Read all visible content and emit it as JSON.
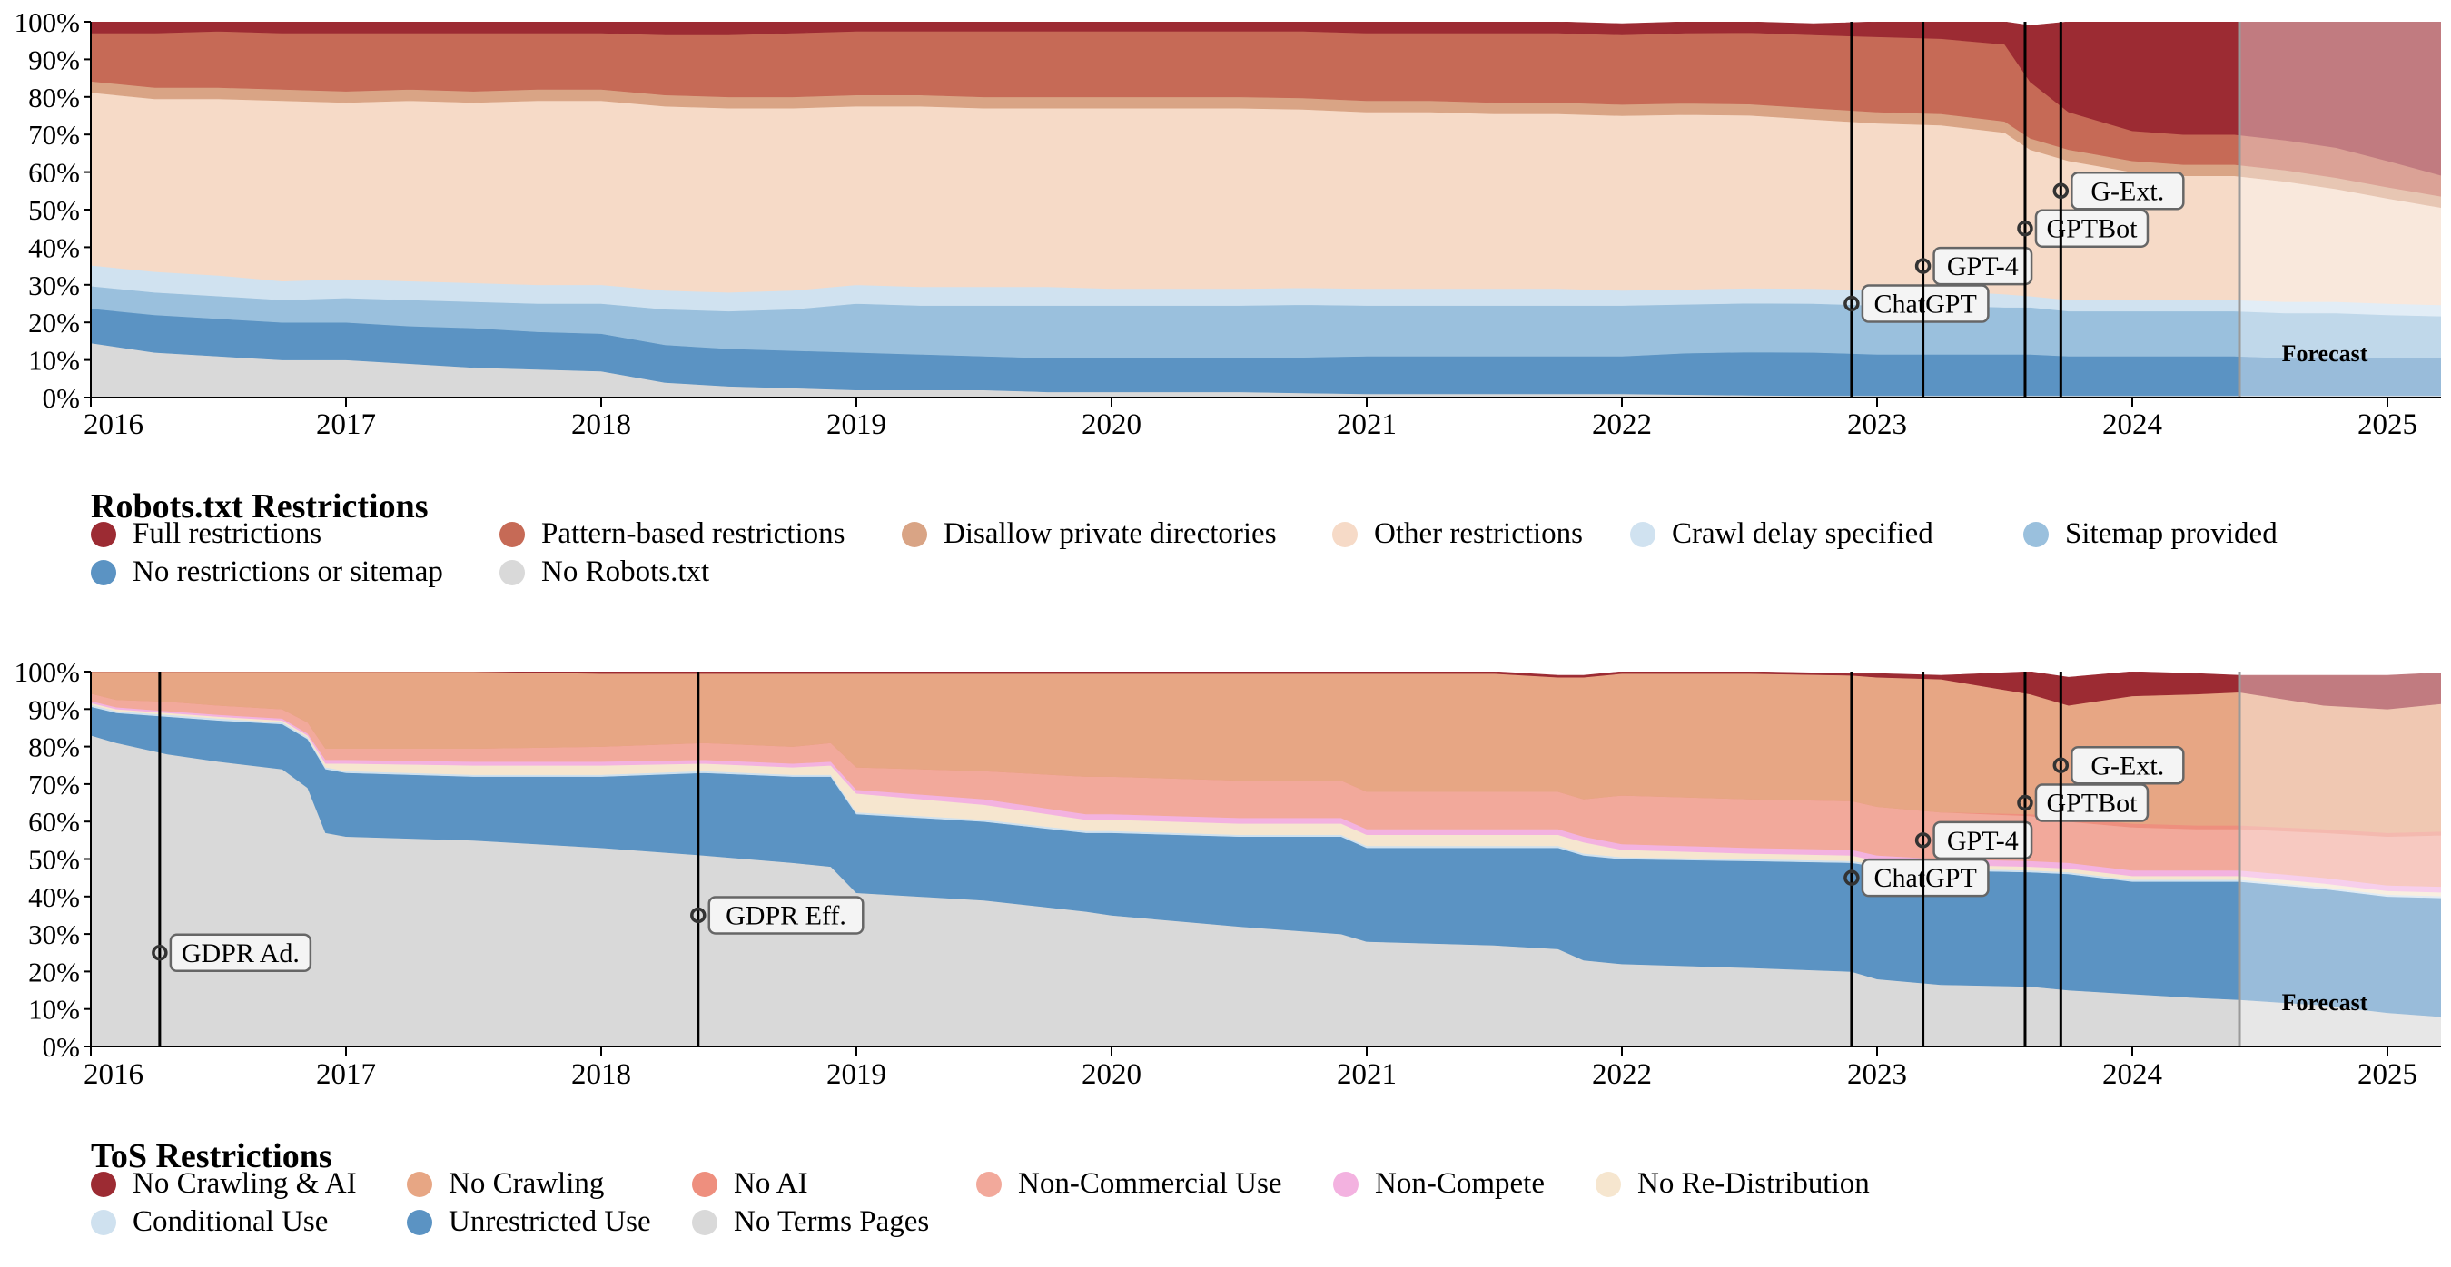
{
  "chart_data": [
    {
      "type": "area",
      "stacked": true,
      "title": "Robots.txt Restrictions",
      "x": [
        2015.95,
        2016.25,
        2016.5,
        2016.75,
        2017.0,
        2017.25,
        2017.5,
        2017.75,
        2018.0,
        2018.25,
        2018.5,
        2018.75,
        2019.0,
        2019.25,
        2019.5,
        2019.75,
        2020.0,
        2020.25,
        2020.5,
        2020.75,
        2021.0,
        2021.25,
        2021.5,
        2021.75,
        2022.0,
        2022.25,
        2022.5,
        2022.75,
        2023.0,
        2023.25,
        2023.5,
        2023.6,
        2023.75,
        2024.0,
        2024.2,
        2024.4,
        2024.6,
        2024.8,
        2025.0,
        2025.3
      ],
      "forecast_start": 2024.42,
      "forecast_label": "Forecast",
      "ylim": [
        0,
        100
      ],
      "yticks": [
        "0%",
        "10%",
        "20%",
        "30%",
        "40%",
        "50%",
        "60%",
        "70%",
        "80%",
        "90%",
        "100%"
      ],
      "xticks": [
        {
          "v": 2016,
          "label": "2016"
        },
        {
          "v": 2017,
          "label": "2017"
        },
        {
          "v": 2018,
          "label": "2018"
        },
        {
          "v": 2019,
          "label": "2019"
        },
        {
          "v": 2020,
          "label": "2020"
        },
        {
          "v": 2021,
          "label": "2021"
        },
        {
          "v": 2022,
          "label": "2022"
        },
        {
          "v": 2023,
          "label": "2023"
        },
        {
          "v": 2024,
          "label": "2024"
        },
        {
          "v": 2025,
          "label": "2025"
        }
      ],
      "series": [
        {
          "name": "No Robots.txt",
          "color": "#d9d9d9",
          "values": [
            15,
            12,
            11,
            10,
            10,
            9,
            8,
            7.5,
            7,
            4,
            3,
            2.5,
            2,
            2,
            2,
            1.5,
            1.5,
            1.5,
            1.5,
            1.2,
            1,
            1,
            1,
            1,
            1,
            0.8,
            0.6,
            0.5,
            0.5,
            0.5,
            0.5,
            0.5,
            0.5,
            0.5,
            0.5,
            0.5,
            0.5,
            0.5,
            0.5,
            0.5
          ]
        },
        {
          "name": "No restrictions or sitemap",
          "color": "#5b93c3",
          "values": [
            9,
            10,
            10,
            10,
            10,
            10,
            10.5,
            10,
            10,
            10,
            10,
            10,
            10,
            9.5,
            9,
            9,
            9,
            9,
            9,
            9.5,
            10,
            10,
            10,
            10,
            10,
            11,
            11.5,
            11.5,
            11,
            11,
            11,
            11,
            10.5,
            10.5,
            10.5,
            10.5,
            10,
            10,
            10,
            10
          ]
        },
        {
          "name": "Sitemap provided",
          "color": "#9ac0dd",
          "values": [
            6,
            6,
            6,
            6,
            6.5,
            7,
            7,
            7.5,
            8,
            9.5,
            10,
            11,
            13,
            13,
            13.5,
            14,
            14,
            14,
            14,
            14,
            13.5,
            13.5,
            13.5,
            13.5,
            13.5,
            13,
            13,
            13,
            13,
            13,
            12.5,
            12.5,
            12,
            12,
            12,
            12,
            12,
            12,
            11.5,
            11
          ]
        },
        {
          "name": "Crawl delay specified",
          "color": "#d0e2f0",
          "values": [
            5.5,
            5.5,
            5.5,
            5,
            5,
            5,
            5,
            5,
            5,
            5,
            5,
            5,
            5,
            5,
            5,
            5,
            4.5,
            4.5,
            4.5,
            4.5,
            4.5,
            4.5,
            4.5,
            4.5,
            4,
            4,
            4,
            4,
            4,
            4,
            3.5,
            3,
            3,
            3,
            3,
            3,
            3,
            3,
            3,
            3
          ]
        },
        {
          "name": "Other restrictions",
          "color": "#f6dac7",
          "values": [
            46,
            46,
            47,
            48,
            47,
            48,
            48,
            49,
            49,
            49,
            49,
            48.5,
            47.5,
            48,
            47.5,
            47.5,
            48,
            48,
            48,
            47.5,
            47,
            47,
            46.5,
            46.5,
            46.5,
            46.5,
            46,
            45,
            44.5,
            44,
            43,
            39,
            37,
            34,
            33,
            33,
            32,
            30,
            28,
            25
          ]
        },
        {
          "name": "Disallow private directories",
          "color": "#d9a485",
          "values": [
            3,
            3,
            3,
            3,
            3,
            3,
            3,
            3,
            3,
            3,
            3,
            3,
            3,
            3,
            3,
            3,
            3,
            3,
            3,
            3,
            3,
            3,
            3,
            3,
            3,
            3,
            3,
            3,
            3,
            3,
            3,
            3,
            3,
            3,
            3,
            3,
            3,
            3,
            3,
            3
          ]
        },
        {
          "name": "Pattern-based restrictions",
          "color": "#c66a56",
          "values": [
            12.5,
            14.5,
            15,
            15,
            15.5,
            15,
            15.5,
            15,
            15,
            16,
            16.5,
            17,
            17,
            17,
            17.5,
            17.5,
            17.5,
            17.5,
            17.5,
            17.8,
            18,
            18,
            18.5,
            18.5,
            18.5,
            18.7,
            19,
            19.5,
            20,
            20,
            20.5,
            15,
            10,
            8,
            8,
            8,
            8,
            8,
            7,
            5
          ]
        },
        {
          "name": "Full restrictions",
          "color": "#9c2b33",
          "values": [
            3,
            3,
            2.5,
            3,
            3,
            3,
            3,
            3,
            3,
            3.5,
            3.5,
            3,
            2.5,
            2.5,
            2.5,
            2.5,
            2.5,
            2.5,
            2.5,
            2.5,
            3,
            3,
            3,
            3,
            3,
            3,
            2.9,
            3,
            4,
            4.5,
            6,
            15,
            24,
            29,
            30,
            30,
            31.5,
            33.5,
            37,
            42.5
          ]
        }
      ],
      "events": [
        {
          "x": 2022.9,
          "y": 25,
          "label": "ChatGPT"
        },
        {
          "x": 2023.18,
          "y": 35,
          "label": "GPT-4"
        },
        {
          "x": 2023.58,
          "y": 45,
          "label": "GPTBot"
        },
        {
          "x": 2023.72,
          "y": 55,
          "label": "G-Ext."
        }
      ]
    },
    {
      "type": "area",
      "stacked": true,
      "title": "ToS Restrictions",
      "x": [
        2015.95,
        2016.1,
        2016.3,
        2016.5,
        2016.75,
        2016.85,
        2016.92,
        2017.0,
        2017.5,
        2018.0,
        2018.4,
        2018.75,
        2018.9,
        2019.0,
        2019.5,
        2019.9,
        2020.0,
        2020.5,
        2020.9,
        2021.0,
        2021.5,
        2021.75,
        2021.85,
        2022.0,
        2022.5,
        2022.9,
        2023.0,
        2023.25,
        2023.6,
        2023.75,
        2024.0,
        2024.25,
        2024.42,
        2024.75,
        2025.0,
        2025.3
      ],
      "forecast_start": 2024.42,
      "forecast_label": "Forecast",
      "ylim": [
        0,
        100
      ],
      "yticks": [
        "0%",
        "10%",
        "20%",
        "30%",
        "40%",
        "50%",
        "60%",
        "70%",
        "80%",
        "90%",
        "100%"
      ],
      "xticks": [
        {
          "v": 2016,
          "label": "2016"
        },
        {
          "v": 2017,
          "label": "2017"
        },
        {
          "v": 2018,
          "label": "2018"
        },
        {
          "v": 2019,
          "label": "2019"
        },
        {
          "v": 2020,
          "label": "2020"
        },
        {
          "v": 2021,
          "label": "2021"
        },
        {
          "v": 2022,
          "label": "2022"
        },
        {
          "v": 2023,
          "label": "2023"
        },
        {
          "v": 2024,
          "label": "2024"
        },
        {
          "v": 2025,
          "label": "2025"
        }
      ],
      "series": [
        {
          "name": "No Terms Pages",
          "color": "#d9d9d9",
          "values": [
            84,
            81,
            78,
            76,
            74,
            69,
            57,
            56,
            55,
            53,
            51,
            49,
            48,
            41,
            39,
            36,
            35,
            32,
            30,
            28,
            27,
            26,
            23,
            22,
            21,
            20,
            18,
            16.5,
            16,
            15,
            14,
            13,
            12.5,
            11,
            9,
            7.5
          ]
        },
        {
          "name": "Unrestricted Use",
          "color": "#5b93c3",
          "values": [
            7.5,
            8,
            10,
            11,
            12,
            13,
            17,
            17,
            17,
            19,
            22,
            23,
            24,
            21,
            21,
            21,
            22,
            24,
            26,
            25,
            26,
            27,
            28,
            28,
            28.5,
            29,
            30,
            30.5,
            30.5,
            31,
            30,
            31,
            31.5,
            31,
            31,
            32
          ]
        },
        {
          "name": "Conditional Use",
          "color": "#cfe1ef",
          "values": [
            0.5,
            0.5,
            0.5,
            0.5,
            0.5,
            0.5,
            0.5,
            0.5,
            0.5,
            0.5,
            0.5,
            0.5,
            0.5,
            0.5,
            0.5,
            0.5,
            0.5,
            0.5,
            0.5,
            0.5,
            0.5,
            0.5,
            0.5,
            0.5,
            0.5,
            0.5,
            0.5,
            0.5,
            0.5,
            0.5,
            0.5,
            0.5,
            0.5,
            0.5,
            0.5,
            0.5
          ]
        },
        {
          "name": "No Re-Distribution",
          "color": "#f6e6cf",
          "values": [
            0.5,
            0.5,
            0.5,
            0.5,
            0.5,
            0.5,
            1,
            2,
            2.5,
            2.5,
            2,
            2,
            2.5,
            5,
            4,
            3,
            3,
            3,
            3,
            3,
            3,
            3,
            3,
            2,
            1.5,
            1.5,
            1,
            1,
            1,
            1,
            1,
            1,
            1,
            1,
            1,
            1
          ]
        },
        {
          "name": "Non-Compete",
          "color": "#f3b2e0",
          "values": [
            0.5,
            0.5,
            0.5,
            0.5,
            0.5,
            0.5,
            1,
            1,
            1,
            1,
            1,
            1,
            1,
            1,
            1.5,
            1.5,
            1.5,
            1.5,
            1.5,
            1.5,
            1.5,
            1.5,
            1.5,
            1.5,
            1.5,
            1.5,
            1.5,
            1.5,
            1.5,
            1.5,
            1.5,
            1.5,
            1.5,
            1.5,
            1.5,
            1.5
          ]
        },
        {
          "name": "Non-Commercial Use",
          "color": "#f2a99b",
          "values": [
            2,
            2,
            2.5,
            2.5,
            2.5,
            3,
            3,
            3,
            3.5,
            4,
            4.5,
            4.5,
            5,
            6,
            7.5,
            10,
            10,
            10,
            10,
            10,
            10,
            10,
            10,
            13,
            13,
            13,
            13,
            12.5,
            12,
            11,
            11.5,
            11,
            11,
            12,
            13,
            14
          ]
        },
        {
          "name": "No AI",
          "color": "#ee8f7e",
          "values": [
            0,
            0,
            0,
            0,
            0,
            0,
            0,
            0,
            0,
            0,
            0,
            0,
            0,
            0,
            0,
            0,
            0,
            0,
            0,
            0,
            0,
            0,
            0,
            0,
            0,
            0,
            0,
            0,
            0.5,
            1,
            1,
            1,
            1,
            1,
            1,
            1
          ]
        },
        {
          "name": "No Crawling",
          "color": "#e7a684",
          "values": [
            5,
            7.5,
            8,
            9,
            10,
            13.5,
            20.5,
            20.5,
            20.5,
            19.5,
            18.5,
            19.5,
            18.5,
            25,
            26,
            27.5,
            27.5,
            28.5,
            28.5,
            31.5,
            31.5,
            30.5,
            32.5,
            32.5,
            33.5,
            33.5,
            34.5,
            35.5,
            32,
            30,
            34,
            35,
            35.5,
            33,
            33,
            34.5
          ]
        },
        {
          "name": "No Crawling & AI",
          "color": "#9c2b33",
          "values": [
            0,
            0,
            0,
            0,
            0,
            0,
            0,
            0,
            0,
            0.5,
            0.5,
            0.5,
            0.5,
            0.5,
            0.5,
            0.5,
            0.5,
            0.5,
            0.5,
            0.5,
            0.5,
            0.5,
            0.5,
            0.5,
            0.5,
            0.5,
            1,
            1,
            6,
            7.5,
            6.5,
            5.5,
            4.5,
            8,
            9,
            8
          ]
        }
      ],
      "events": [
        {
          "x": 2016.27,
          "y": 25,
          "label": "GDPR Ad."
        },
        {
          "x": 2018.38,
          "y": 35,
          "label": "GDPR Eff."
        },
        {
          "x": 2022.9,
          "y": 45,
          "label": "ChatGPT"
        },
        {
          "x": 2023.18,
          "y": 55,
          "label": "GPT-4"
        },
        {
          "x": 2023.58,
          "y": 65,
          "label": "GPTBot"
        },
        {
          "x": 2023.72,
          "y": 75,
          "label": "G-Ext."
        }
      ]
    }
  ],
  "legends": [
    {
      "title": "Robots.txt Restrictions",
      "rows": [
        [
          {
            "label": "Full restrictions",
            "color": "#9c2b33"
          },
          {
            "label": "Pattern-based restrictions",
            "color": "#c66a56"
          },
          {
            "label": "Disallow private directories",
            "color": "#d9a485"
          },
          {
            "label": "Other restrictions",
            "color": "#f6dac7"
          },
          {
            "label": "Crawl delay specified",
            "color": "#d0e2f0"
          },
          {
            "label": "Sitemap provided",
            "color": "#9ac0dd"
          }
        ],
        [
          {
            "label": "No restrictions or sitemap",
            "color": "#5b93c3"
          },
          {
            "label": "No Robots.txt",
            "color": "#d9d9d9"
          }
        ]
      ]
    },
    {
      "title": "ToS Restrictions",
      "rows": [
        [
          {
            "label": "No Crawling & AI",
            "color": "#9c2b33"
          },
          {
            "label": "No Crawling",
            "color": "#e7a684"
          },
          {
            "label": "No AI",
            "color": "#ee8f7e"
          },
          {
            "label": "Non-Commercial Use",
            "color": "#f2a99b"
          },
          {
            "label": "Non-Compete",
            "color": "#f3b2e0"
          },
          {
            "label": "No Re-Distribution",
            "color": "#f6e6cf"
          }
        ],
        [
          {
            "label": "Conditional Use",
            "color": "#cfe1ef"
          },
          {
            "label": "Unrestricted Use",
            "color": "#5b93c3"
          },
          {
            "label": "No Terms Pages",
            "color": "#d9d9d9"
          }
        ]
      ]
    }
  ]
}
